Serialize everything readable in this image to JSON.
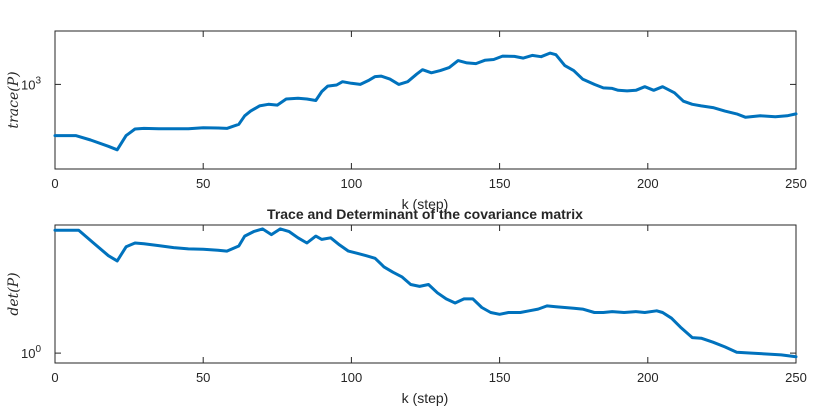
{
  "colors": {
    "line": "#0072BD",
    "axes": "#262626",
    "background": "#ffffff"
  },
  "chart_data": [
    {
      "type": "line",
      "ylabel": "trace(P)",
      "xlabel": "k (step)",
      "title": "",
      "yscale": "log",
      "xlim": [
        0,
        250
      ],
      "x_ticks": [
        0,
        50,
        100,
        150,
        200,
        250
      ],
      "y_ticks": [
        {
          "value": 1000,
          "base": "10",
          "exp": "3"
        }
      ],
      "ylim": [
        220,
        2600
      ],
      "grid": false,
      "series": [
        {
          "x": [
            0,
            7,
            12,
            18,
            21,
            24,
            27,
            30,
            35,
            40,
            45,
            50,
            55,
            58,
            62,
            64,
            66,
            69,
            72,
            75,
            78,
            82,
            85,
            88,
            90,
            92,
            95,
            97,
            100,
            103,
            106,
            108,
            110,
            113,
            116,
            119,
            122,
            124,
            127,
            130,
            133,
            136,
            139,
            142,
            145,
            148,
            151,
            155,
            158,
            161,
            164,
            167,
            169,
            172,
            175,
            178,
            182,
            185,
            188,
            190,
            193,
            196,
            199,
            202,
            205,
            209,
            212,
            215,
            218,
            222,
            226,
            230,
            233,
            238,
            243,
            247,
            250
          ],
          "y": [
            400,
            400,
            370,
            330,
            310,
            400,
            450,
            455,
            452,
            452,
            452,
            460,
            458,
            455,
            490,
            570,
            620,
            680,
            700,
            690,
            770,
            780,
            770,
            750,
            880,
            970,
            990,
            1050,
            1020,
            1000,
            1080,
            1150,
            1160,
            1100,
            1000,
            1050,
            1200,
            1300,
            1230,
            1280,
            1350,
            1530,
            1470,
            1450,
            1540,
            1560,
            1660,
            1650,
            1600,
            1680,
            1640,
            1750,
            1700,
            1400,
            1280,
            1100,
            1000,
            940,
            930,
            900,
            890,
            900,
            960,
            900,
            960,
            860,
            740,
            700,
            680,
            660,
            620,
            590,
            555,
            570,
            560,
            570,
            590
          ]
        }
      ]
    },
    {
      "type": "line",
      "title": "Trace and Determinant of the covariance matrix",
      "ylabel": "det(P)",
      "xlabel": "k (step)",
      "yscale": "log",
      "xlim": [
        0,
        250
      ],
      "x_ticks": [
        0,
        50,
        100,
        150,
        200,
        250
      ],
      "y_ticks": [
        {
          "value": 1,
          "base": "10",
          "exp": "0"
        }
      ],
      "ylim": [
        0.8,
        18
      ],
      "grid": false,
      "series": [
        {
          "x": [
            0,
            8,
            13,
            18,
            21,
            24,
            27,
            30,
            35,
            40,
            45,
            50,
            55,
            58,
            62,
            64,
            67,
            70,
            73,
            76,
            79,
            82,
            85,
            88,
            90,
            93,
            96,
            99,
            102,
            105,
            108,
            111,
            114,
            117,
            120,
            123,
            126,
            129,
            132,
            135,
            138,
            141,
            144,
            147,
            150,
            153,
            157,
            160,
            163,
            166,
            169,
            172,
            175,
            178,
            182,
            185,
            188,
            192,
            196,
            199,
            203,
            205,
            208,
            211,
            215,
            218,
            222,
            226,
            230,
            235,
            240,
            245,
            250
          ],
          "y": [
            16,
            16,
            12,
            9,
            8,
            11,
            12,
            11.8,
            11.3,
            10.8,
            10.5,
            10.4,
            10.2,
            10,
            11.2,
            14,
            15.5,
            16.5,
            14.5,
            16.5,
            15.5,
            13.5,
            12,
            14,
            13,
            13.5,
            11.5,
            10,
            9.5,
            9,
            8.5,
            7,
            6.2,
            5.6,
            4.7,
            4.5,
            4.7,
            3.9,
            3.4,
            3.1,
            3.4,
            3.4,
            2.8,
            2.5,
            2.4,
            2.5,
            2.5,
            2.6,
            2.7,
            2.9,
            2.85,
            2.8,
            2.75,
            2.7,
            2.5,
            2.5,
            2.55,
            2.5,
            2.55,
            2.5,
            2.6,
            2.5,
            2.2,
            1.8,
            1.42,
            1.4,
            1.28,
            1.15,
            1.02,
            1.0,
            0.98,
            0.96,
            0.92
          ]
        }
      ]
    }
  ]
}
